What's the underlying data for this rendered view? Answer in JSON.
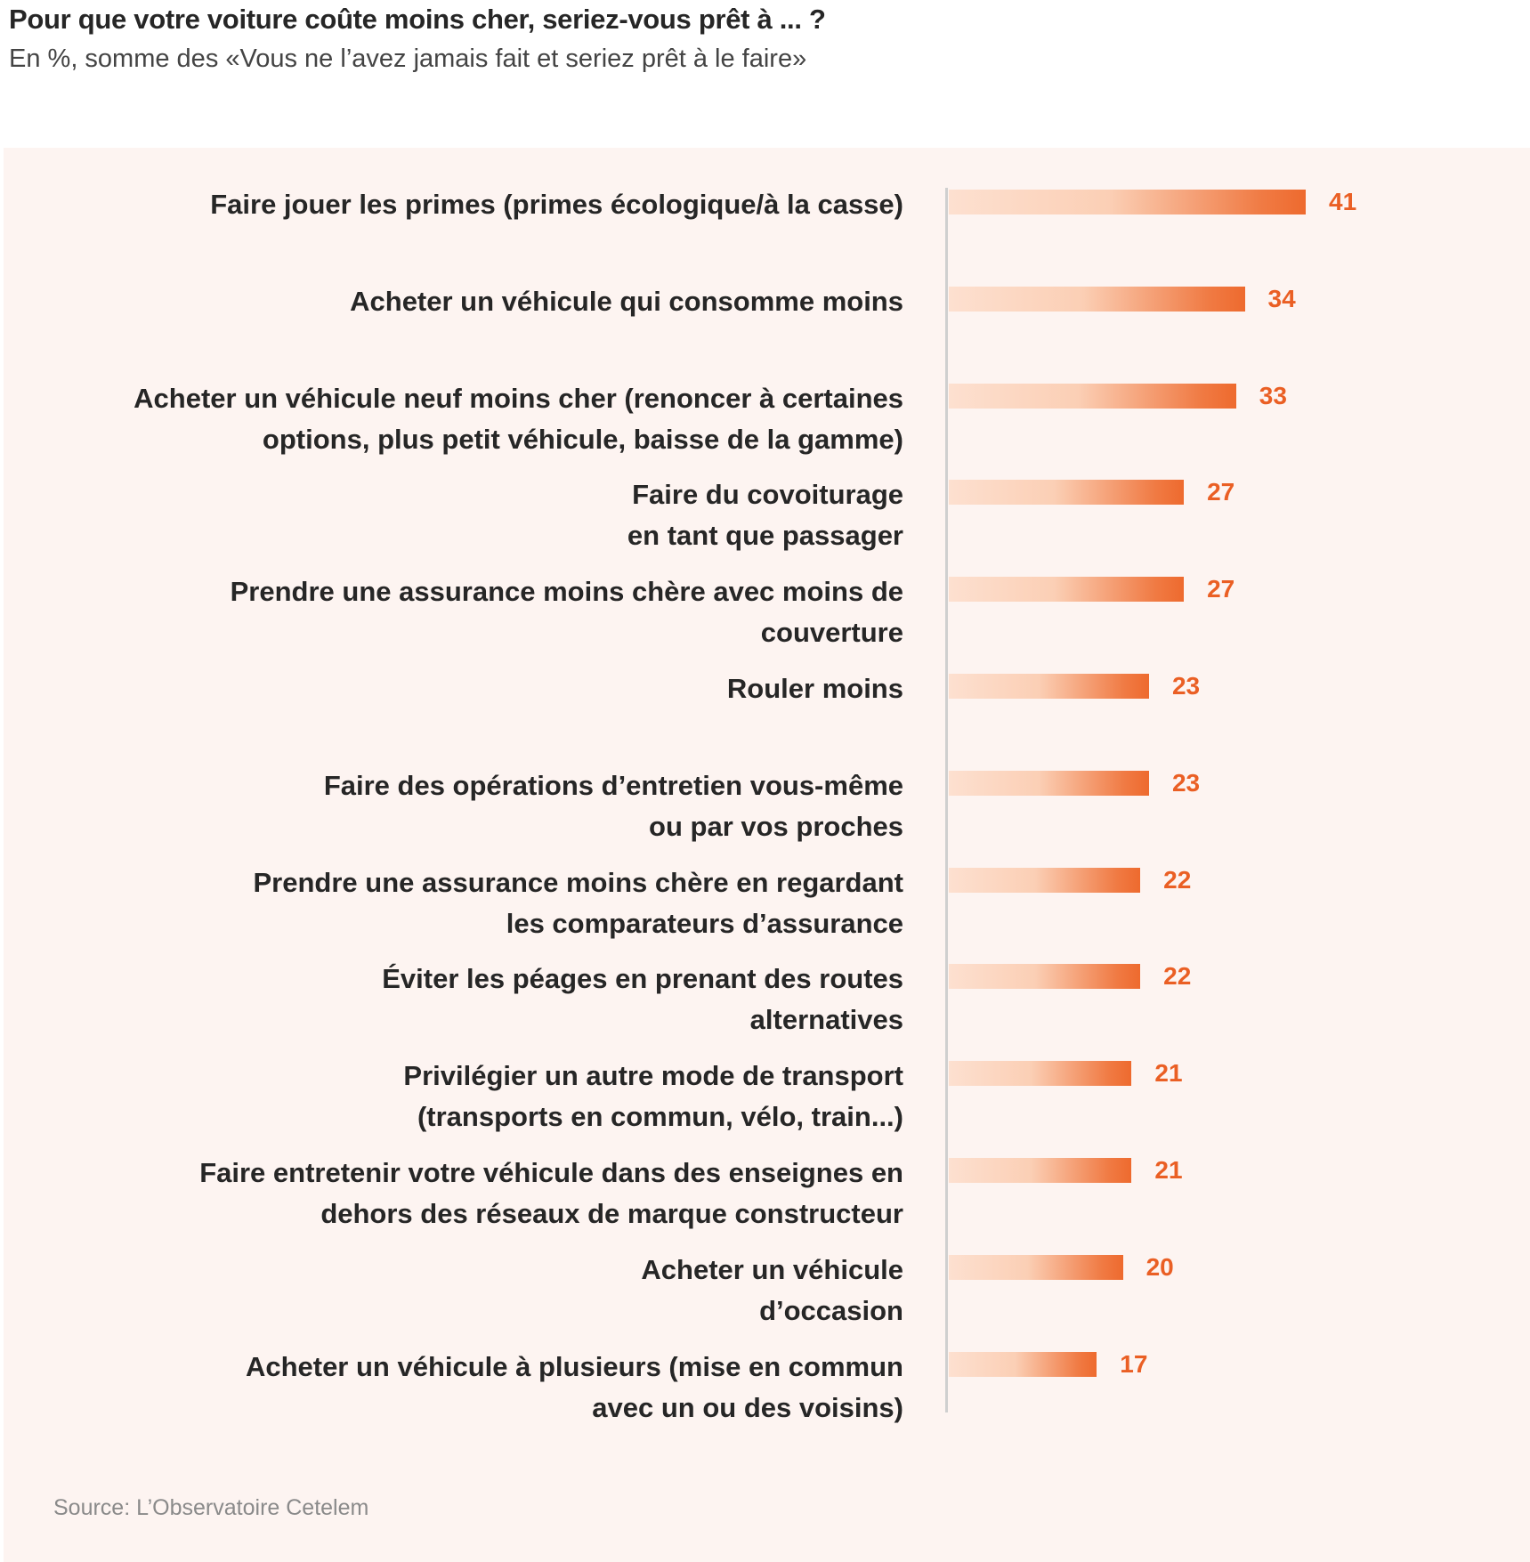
{
  "title": "Pour que votre voiture coûte moins cher, seriez-vous prêt à ... ?",
  "subtitle": "En %, somme des «Vous ne l’avez jamais fait et seriez prêt à le faire»",
  "source": "Source: L’Observatoire Cetelem",
  "colors": {
    "bar_start": "#fde0d0",
    "bar_end": "#ee6a2e",
    "value": "#ea5f24",
    "panel": "#fdf4f1"
  },
  "chart_data": {
    "type": "bar",
    "orientation": "horizontal",
    "title": "Pour que votre voiture coûte moins cher, seriez-vous prêt à ... ?",
    "subtitle": "En %, somme des «Vous ne l’avez jamais fait et seriez prêt à le faire»",
    "xlabel": "",
    "ylabel": "",
    "xlim": [
      0,
      41
    ],
    "grid": false,
    "categories": [
      "Faire jouer les primes (primes écologique/à la casse)",
      "Acheter un véhicule qui consomme moins",
      "Acheter un véhicule neuf moins cher (renoncer à certaines\noptions, plus petit véhicule, baisse de la gamme)",
      "Faire du covoiturage\nen tant que passager",
      "Prendre une assurance moins chère avec moins de\ncouverture",
      "Rouler moins",
      "Faire des opérations d’entretien vous-même\nou par vos proches",
      "Prendre une assurance moins chère en regardant\nles comparateurs d’assurance",
      "Éviter les péages en prenant des routes\nalternatives",
      "Privilégier un autre mode de transport\n(transports en commun, vélo, train...)",
      "Faire entretenir votre véhicule dans des enseignes en\ndehors des réseaux de marque constructeur",
      "Acheter un véhicule\nd’occasion",
      "Acheter un véhicule à plusieurs (mise en commun\navec un ou des voisins)"
    ],
    "values": [
      41,
      34,
      33,
      27,
      27,
      23,
      23,
      22,
      22,
      21,
      21,
      20,
      17
    ]
  }
}
